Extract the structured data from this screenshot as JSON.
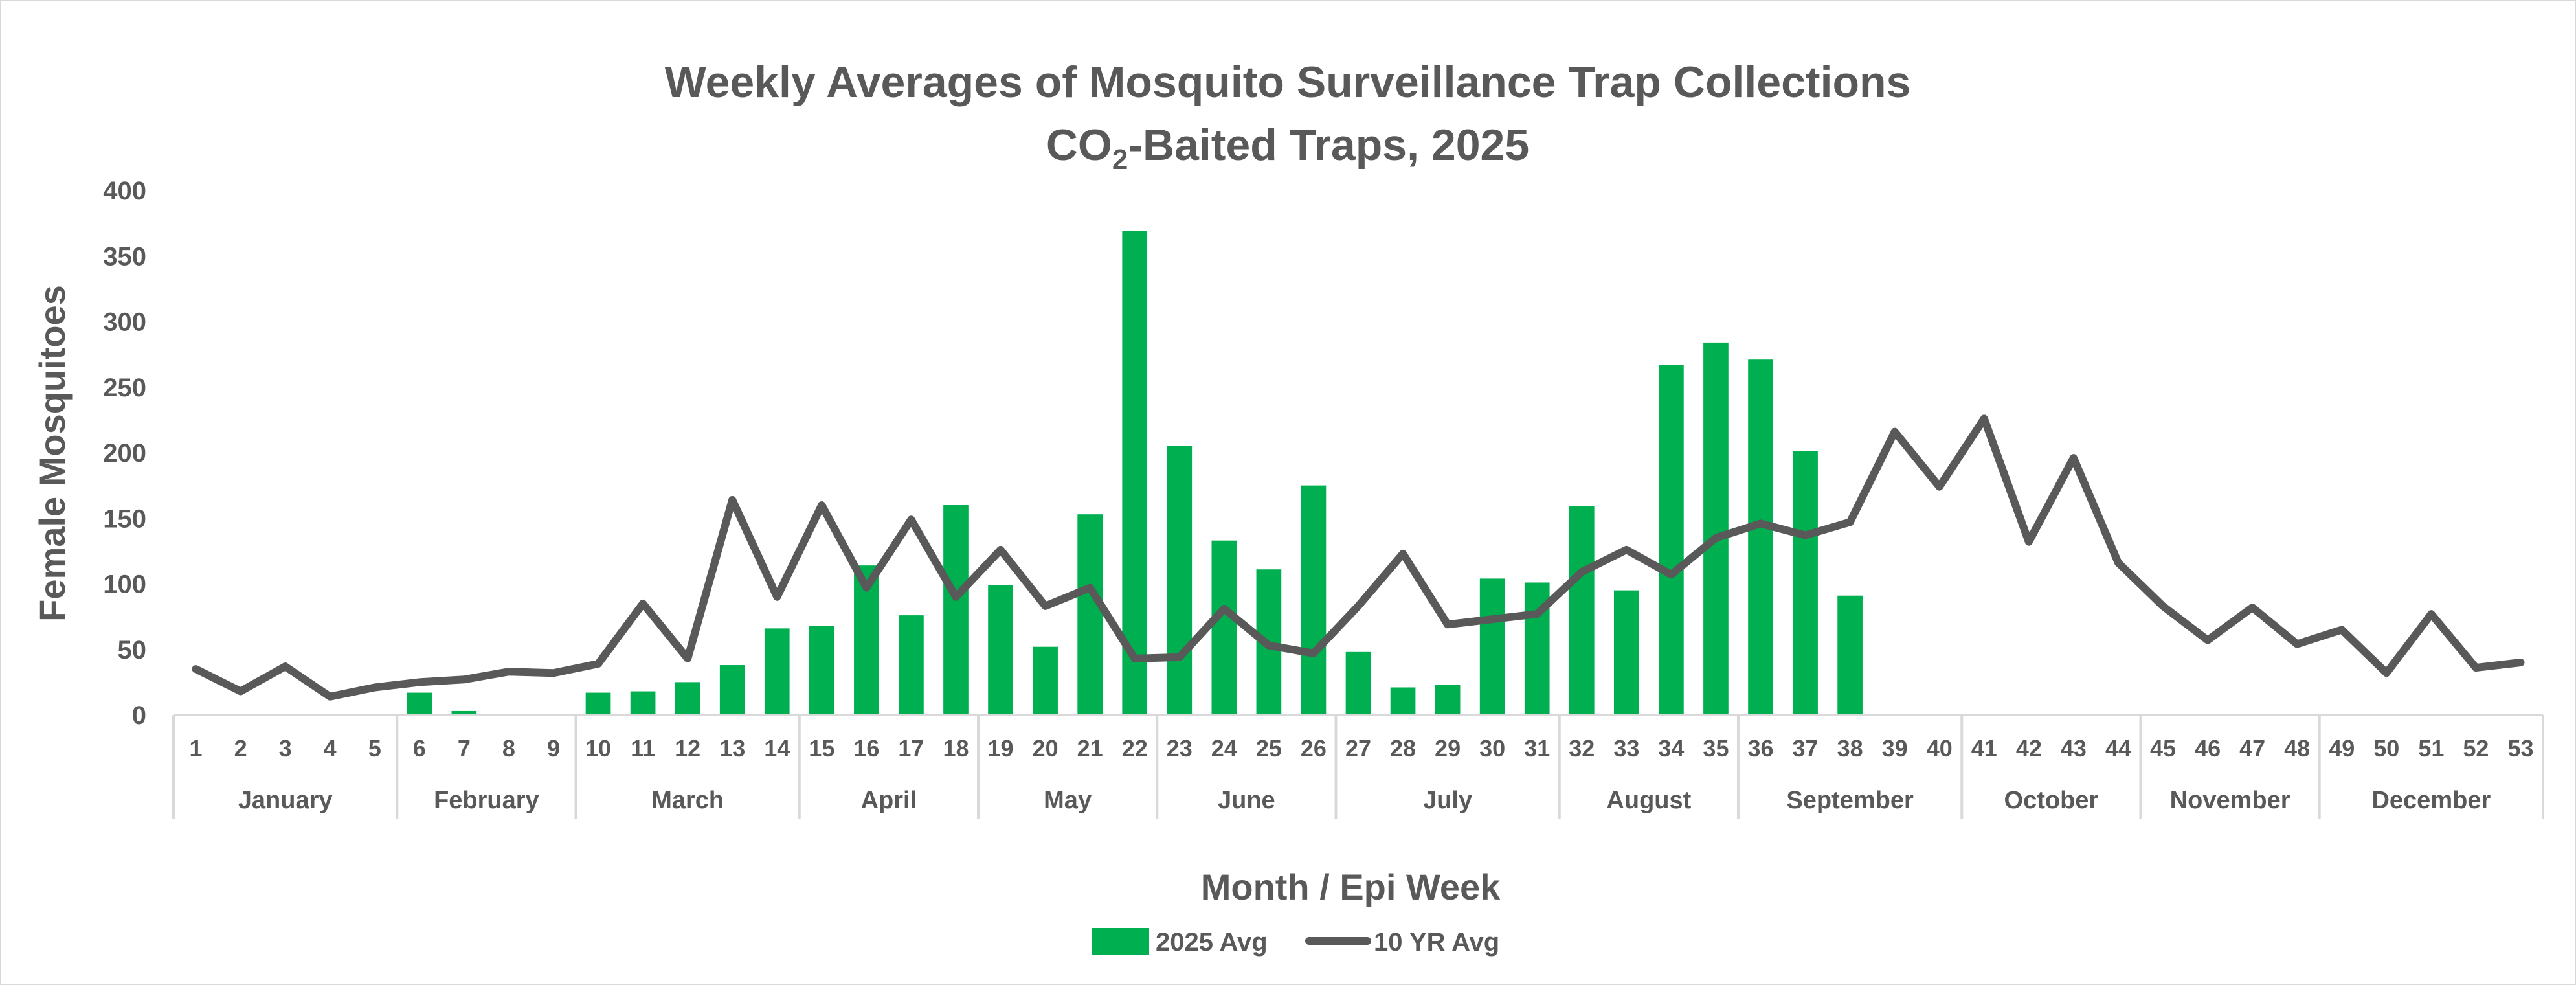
{
  "chart_data": {
    "type": "bar+line",
    "title": "Weekly Averages of Mosquito Surveillance Trap Collections",
    "subtitle_prefix": "CO",
    "subtitle_sub": "2",
    "subtitle_suffix": "-Baited Traps, 2025",
    "xlabel": "Month / Epi Week",
    "ylabel": "Female Mosquitoes",
    "ylim": [
      0,
      400
    ],
    "yticks": [
      0,
      50,
      100,
      150,
      200,
      250,
      300,
      350,
      400
    ],
    "grid": false,
    "legend_position": "bottom",
    "categories": [
      "1",
      "2",
      "3",
      "4",
      "5",
      "6",
      "7",
      "8",
      "9",
      "10",
      "11",
      "12",
      "13",
      "14",
      "15",
      "16",
      "17",
      "18",
      "19",
      "20",
      "21",
      "22",
      "23",
      "24",
      "25",
      "26",
      "27",
      "28",
      "29",
      "30",
      "31",
      "32",
      "33",
      "34",
      "35",
      "36",
      "37",
      "38",
      "39",
      "40",
      "41",
      "42",
      "43",
      "44",
      "45",
      "46",
      "47",
      "48",
      "49",
      "50",
      "51",
      "52",
      "53"
    ],
    "months": [
      {
        "name": "January",
        "start": 1,
        "end": 5
      },
      {
        "name": "February",
        "start": 6,
        "end": 9
      },
      {
        "name": "March",
        "start": 10,
        "end": 14
      },
      {
        "name": "April",
        "start": 15,
        "end": 18
      },
      {
        "name": "May",
        "start": 19,
        "end": 22
      },
      {
        "name": "June",
        "start": 23,
        "end": 26
      },
      {
        "name": "July",
        "start": 27,
        "end": 31
      },
      {
        "name": "August",
        "start": 32,
        "end": 35
      },
      {
        "name": "September",
        "start": 36,
        "end": 40
      },
      {
        "name": "October",
        "start": 41,
        "end": 44
      },
      {
        "name": "November",
        "start": 45,
        "end": 48
      },
      {
        "name": "December",
        "start": 49,
        "end": 53
      }
    ],
    "series": [
      {
        "name": "2025 Avg",
        "type": "bar",
        "color": "#00b050",
        "values": [
          null,
          null,
          null,
          null,
          null,
          17,
          3,
          0,
          0,
          17,
          18,
          25,
          38,
          66,
          68,
          114,
          76,
          160,
          99,
          52,
          153,
          369,
          205,
          133,
          111,
          175,
          48,
          21,
          23,
          104,
          101,
          159,
          95,
          267,
          284,
          271,
          201,
          91,
          null,
          null,
          null,
          null,
          null,
          null,
          null,
          null,
          null,
          null,
          null,
          null,
          null,
          null,
          null
        ]
      },
      {
        "name": "10 YR Avg",
        "type": "line",
        "color": "#595959",
        "values": [
          35,
          18,
          37,
          14,
          21,
          25,
          27,
          33,
          32,
          39,
          85,
          43,
          164,
          90,
          160,
          97,
          149,
          90,
          126,
          83,
          97,
          43,
          44,
          81,
          53,
          47,
          83,
          123,
          69,
          73,
          77,
          109,
          126,
          107,
          135,
          146,
          137,
          147,
          216,
          174,
          226,
          132,
          196,
          116,
          83,
          57,
          82,
          54,
          65,
          32,
          77,
          36,
          40
        ]
      }
    ]
  }
}
